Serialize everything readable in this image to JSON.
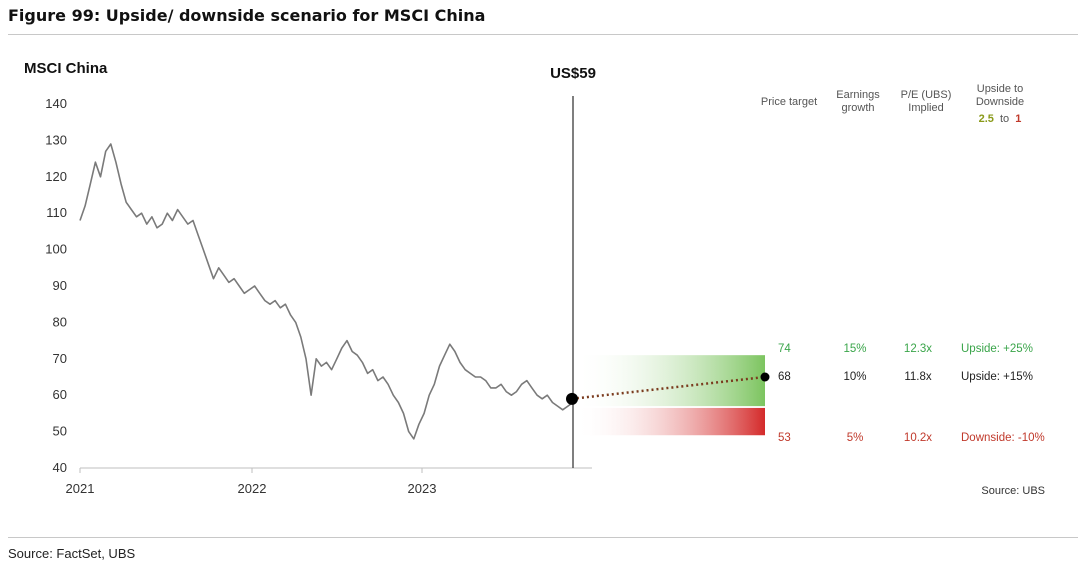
{
  "figure": {
    "title": "Figure 99: Upside/ downside scenario for MSCI China",
    "source": "Source: FactSet, UBS"
  },
  "chart_data": {
    "type": "line",
    "title": "MSCI China",
    "marker_label": "US$59",
    "chart_source": "Source: UBS",
    "y_ticks": [
      40,
      50,
      60,
      70,
      80,
      90,
      100,
      110,
      120,
      130,
      140
    ],
    "ylim": [
      40,
      140
    ],
    "x_ticks": [
      "2021",
      "2022",
      "2023"
    ],
    "grid": false,
    "series": [
      {
        "values": [
          108,
          112,
          118,
          124,
          120,
          127,
          129,
          124,
          118,
          113,
          111,
          109,
          110,
          107,
          109,
          106,
          107,
          110,
          108,
          111,
          109,
          107,
          108,
          104,
          100,
          96,
          92,
          95,
          93,
          91,
          92,
          90,
          88,
          89,
          90,
          88,
          86,
          85,
          86,
          84,
          85,
          82,
          80,
          76,
          70,
          60,
          70,
          68,
          69,
          67,
          70,
          73,
          75,
          72,
          71,
          69,
          66,
          67,
          64,
          65,
          63,
          60,
          58,
          55,
          50,
          48,
          52,
          55,
          60,
          63,
          68,
          71,
          74,
          72,
          69,
          67,
          66,
          65,
          65,
          64,
          62,
          62,
          63,
          61,
          60,
          61,
          63,
          64,
          62,
          60,
          59,
          60,
          58,
          57,
          56,
          57,
          58
        ]
      }
    ],
    "current": {
      "value": 59
    },
    "scenarios": {
      "headers": {
        "price_target": "Price target",
        "earnings_growth": "Earnings growth",
        "pe": "P/E (UBS) Implied",
        "ratio_title": "Upside to Downside",
        "ratio_up": "2.5",
        "ratio_to": "to",
        "ratio_down": "1"
      },
      "rows": [
        {
          "price_target": "74",
          "earnings_growth": "15%",
          "pe": "12.3x",
          "label": "Upside: +25%",
          "color": "#3aa54a"
        },
        {
          "price_target": "68",
          "earnings_growth": "10%",
          "pe": "11.8x",
          "label": "Upside: +15%",
          "color": "#222222"
        },
        {
          "price_target": "53",
          "earnings_growth": "5%",
          "pe": "10.2x",
          "label": "Downside: -10%",
          "color": "#c0392b"
        }
      ],
      "base_target_value": 65,
      "upside_band": [
        57,
        71
      ],
      "downside_band": [
        49,
        56.5
      ]
    },
    "colors": {
      "line": "#7a7a7a",
      "upside": "#7cc45f",
      "downside": "#d42a2a",
      "ratio_up": "#8a9a1a",
      "ratio_down": "#c0392b",
      "path": "#7a3b1e"
    }
  }
}
